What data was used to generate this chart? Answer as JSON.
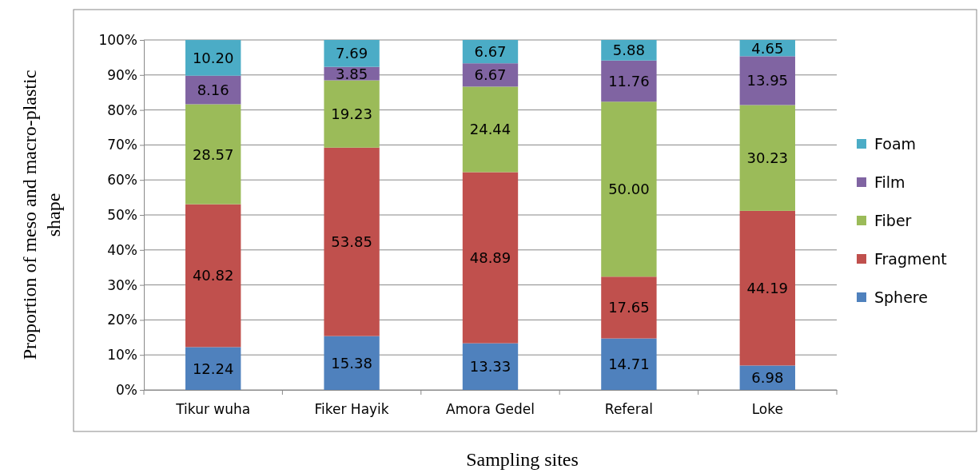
{
  "chart_data": {
    "type": "bar",
    "stacked": true,
    "xlabel": "Sampling sites",
    "ylabel": "Proportion of meso and macro-plastic shape",
    "categories": [
      "Tikur wuha",
      "Fiker Hayik",
      "Amora Gedel",
      "Referal",
      "Loke"
    ],
    "ylim": [
      0,
      100
    ],
    "yticks": [
      {
        "value": 0,
        "label": "0%"
      },
      {
        "value": 10,
        "label": "10%"
      },
      {
        "value": 20,
        "label": "20%"
      },
      {
        "value": 30,
        "label": "30%"
      },
      {
        "value": 40,
        "label": "40%"
      },
      {
        "value": 50,
        "label": "50%"
      },
      {
        "value": 60,
        "label": "60%"
      },
      {
        "value": 70,
        "label": "70%"
      },
      {
        "value": 80,
        "label": "80%"
      },
      {
        "value": 90,
        "label": "90%"
      },
      {
        "value": 100,
        "label": "100%"
      }
    ],
    "grid": "y",
    "legend": "right",
    "series": [
      {
        "name": "Sphere",
        "color": "#4f81bd",
        "values": [
          12.24,
          15.38,
          13.33,
          14.71,
          6.98
        ],
        "value_labels": [
          "12.24",
          "15.38",
          "13.33",
          "14.71",
          "6.98"
        ]
      },
      {
        "name": "Fragment",
        "color": "#c0504d",
        "values": [
          40.82,
          53.85,
          48.89,
          17.65,
          44.19
        ],
        "value_labels": [
          "40.82",
          "53.85",
          "48.89",
          "17.65",
          "44.19"
        ]
      },
      {
        "name": "Fiber",
        "color": "#9bbb59",
        "values": [
          28.57,
          19.23,
          24.44,
          50.0,
          30.23
        ],
        "value_labels": [
          "28.57",
          "19.23",
          "24.44",
          "50.00",
          "30.23"
        ]
      },
      {
        "name": "Film",
        "color": "#8064a2",
        "values": [
          8.16,
          3.85,
          6.67,
          11.76,
          13.95
        ],
        "value_labels": [
          "8.16",
          "3.85",
          "6.67",
          "11.76",
          "13.95"
        ]
      },
      {
        "name": "Foam",
        "color": "#4bacc6",
        "values": [
          10.2,
          7.69,
          6.67,
          5.88,
          4.65
        ],
        "value_labels": [
          "10.20",
          "7.69",
          "6.67",
          "5.88",
          "4.65"
        ]
      }
    ]
  }
}
